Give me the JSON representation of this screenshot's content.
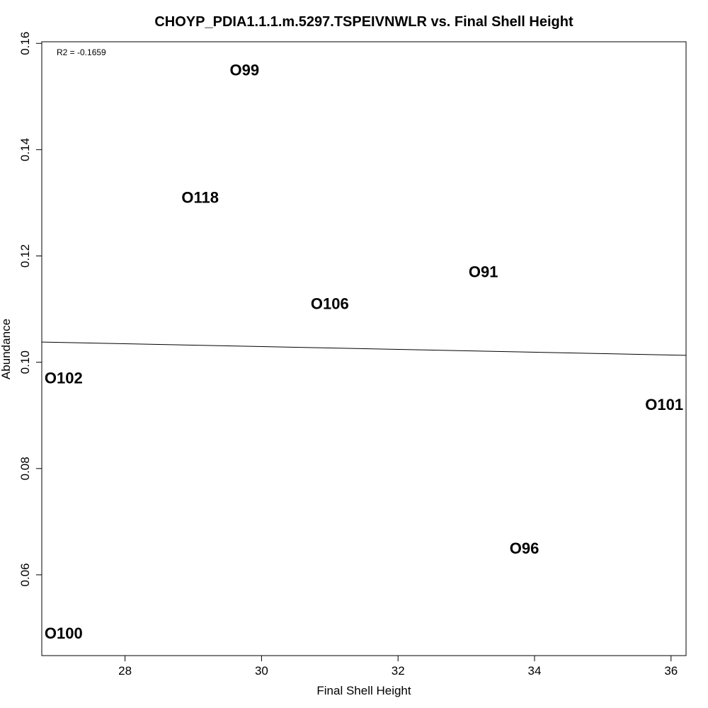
{
  "chart_data": {
    "type": "scatter",
    "title": "CHOYP_PDIA1.1.1.m.5297.TSPEIVNWLR vs. Final Shell Height",
    "xlabel": "Final Shell Height",
    "ylabel": "Abundance",
    "xlim": [
      26.78,
      36.22
    ],
    "ylim": [
      0.0448,
      0.1603
    ],
    "x_ticks": [
      28,
      30,
      32,
      34,
      36
    ],
    "x_tick_labels": [
      "28",
      "30",
      "32",
      "34",
      "36"
    ],
    "y_ticks": [
      0.06,
      0.08,
      0.1,
      0.12,
      0.14,
      0.16
    ],
    "y_tick_labels": [
      "0.06",
      "0.08",
      "0.10",
      "0.12",
      "0.14",
      "0.16"
    ],
    "annotation": "R2 = -0.1659",
    "points": [
      {
        "label": "O99",
        "x": 29.75,
        "y": 0.155
      },
      {
        "label": "O118",
        "x": 29.1,
        "y": 0.131
      },
      {
        "label": "O91",
        "x": 33.25,
        "y": 0.117
      },
      {
        "label": "O106",
        "x": 31.0,
        "y": 0.111
      },
      {
        "label": "O102",
        "x": 27.1,
        "y": 0.097
      },
      {
        "label": "O101",
        "x": 35.9,
        "y": 0.092
      },
      {
        "label": "O96",
        "x": 33.85,
        "y": 0.065
      },
      {
        "label": "O100",
        "x": 27.1,
        "y": 0.049
      }
    ],
    "regression_line": {
      "x": [
        26.78,
        36.22
      ],
      "y": [
        0.1038,
        0.1013
      ]
    },
    "grid": false,
    "legend": "none"
  }
}
